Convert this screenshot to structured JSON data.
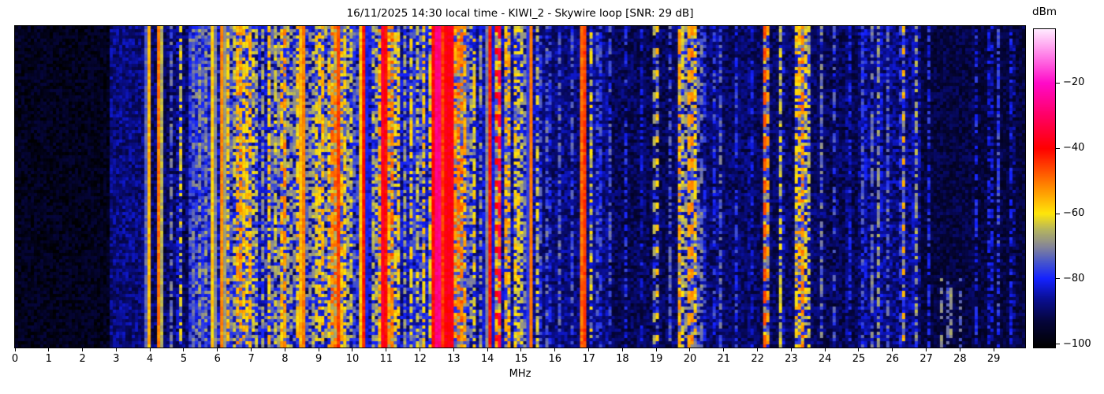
{
  "header": {
    "title": "16/11/2025 14:30 local time - KIWI_2 - Skywire loop [SNR: 29 dB]"
  },
  "axes": {
    "x_label": "MHz",
    "x_ticks": [
      "0",
      "1",
      "2",
      "3",
      "4",
      "5",
      "6",
      "7",
      "8",
      "9",
      "10",
      "11",
      "12",
      "13",
      "14",
      "15",
      "16",
      "17",
      "18",
      "19",
      "20",
      "21",
      "22",
      "23",
      "24",
      "25",
      "26",
      "27",
      "28",
      "29"
    ]
  },
  "colorbar": {
    "label": "dBm",
    "ticks": [
      {
        "label": "−20",
        "value": -20
      },
      {
        "label": "−40",
        "value": -40
      },
      {
        "label": "−60",
        "value": -60
      },
      {
        "label": "−80",
        "value": -80
      },
      {
        "label": "−100",
        "value": -100
      }
    ]
  },
  "chart_data": {
    "type": "heatmap",
    "subtype": "radio-spectrogram-waterfall",
    "title": "16/11/2025 14:30 local time - KIWI_2 - Skywire loop [SNR: 29 dB]",
    "xlabel": "MHz",
    "colorbar_label": "dBm",
    "x_range": [
      0,
      29.93
    ],
    "value_range": [
      -101,
      -3.5
    ],
    "value_ticks": [
      -20,
      -40,
      -60,
      -80,
      -100
    ],
    "grid": {
      "cols": 320,
      "rows": 102
    },
    "seed": 7.31,
    "color_stops": [
      [
        -101,
        "#000000"
      ],
      [
        -93,
        "#05053c"
      ],
      [
        -86,
        "#0a0f96"
      ],
      [
        -80,
        "#1422ff"
      ],
      [
        -75,
        "#4655cd"
      ],
      [
        -70,
        "#878796"
      ],
      [
        -65,
        "#b4b45f"
      ],
      [
        -60,
        "#ffe60a"
      ],
      [
        -52,
        "#ff8c00"
      ],
      [
        -40,
        "#ff0000"
      ],
      [
        -30,
        "#ff0064"
      ],
      [
        -20,
        "#ff0ac8"
      ],
      [
        -12,
        "#ff78e6"
      ],
      [
        -3.5,
        "#ffeaff"
      ]
    ],
    "background_segments": [
      [
        0,
        2.8,
        -97,
        4,
        0
      ],
      [
        2.8,
        3.8,
        -88,
        5,
        0
      ],
      [
        3.8,
        5.1,
        -90,
        6,
        0
      ],
      [
        5.1,
        6.0,
        -81,
        7,
        1
      ],
      [
        6.0,
        7.5,
        -85,
        7,
        1
      ],
      [
        7.5,
        9.8,
        -86,
        7,
        0
      ],
      [
        9.8,
        11.5,
        -85,
        7,
        0
      ],
      [
        11.5,
        13.5,
        -83,
        7,
        0
      ],
      [
        13.5,
        15.6,
        -86,
        6,
        0
      ],
      [
        15.6,
        17.6,
        -88,
        5,
        0
      ],
      [
        17.6,
        19.5,
        -91,
        5,
        0
      ],
      [
        19.5,
        21.0,
        -89,
        5,
        0
      ],
      [
        21.0,
        24.0,
        -90,
        5,
        0
      ],
      [
        24.0,
        25.0,
        -91,
        5,
        0
      ],
      [
        25.0,
        26.8,
        -88,
        6,
        0
      ],
      [
        26.8,
        29.93,
        -93,
        4,
        0
      ]
    ],
    "bands": [
      [
        3.96,
        0.025,
        -56,
        "s"
      ],
      [
        4.28,
        0.02,
        -50,
        "s"
      ],
      [
        4.62,
        0.03,
        -73,
        "d"
      ],
      [
        4.9,
        0.025,
        -62,
        "d"
      ],
      [
        5.3,
        0.04,
        -72,
        "d"
      ],
      [
        5.5,
        0.03,
        -68,
        "d"
      ],
      [
        5.65,
        0.02,
        -70,
        "d"
      ],
      [
        5.87,
        0.025,
        -58,
        "s"
      ],
      [
        6.15,
        0.02,
        -52,
        "s"
      ],
      [
        6.32,
        0.03,
        -58,
        "d"
      ],
      [
        6.47,
        0.03,
        -65,
        "d"
      ],
      [
        6.6,
        0.04,
        -55,
        "d"
      ],
      [
        6.72,
        0.03,
        -52,
        "d"
      ],
      [
        6.85,
        0.03,
        -58,
        "d"
      ],
      [
        6.98,
        0.04,
        -55,
        "d"
      ],
      [
        7.1,
        0.03,
        -62,
        "d"
      ],
      [
        7.35,
        0.03,
        -68,
        "d"
      ],
      [
        7.55,
        0.025,
        -58,
        "d"
      ],
      [
        7.72,
        0.02,
        -64,
        "d"
      ],
      [
        7.88,
        0.025,
        -56,
        "d"
      ],
      [
        8.02,
        0.025,
        -53,
        "d"
      ],
      [
        8.18,
        0.02,
        -68,
        "d"
      ],
      [
        8.35,
        0.03,
        -58,
        "d"
      ],
      [
        8.52,
        0.025,
        -50,
        "s"
      ],
      [
        8.7,
        0.02,
        -66,
        "d"
      ],
      [
        8.9,
        0.03,
        -60,
        "d"
      ],
      [
        9.08,
        0.03,
        -55,
        "d"
      ],
      [
        9.28,
        0.03,
        -58,
        "d"
      ],
      [
        9.45,
        0.04,
        -50,
        "d"
      ],
      [
        9.58,
        0.03,
        -45,
        "s"
      ],
      [
        9.72,
        0.03,
        -55,
        "d"
      ],
      [
        9.92,
        0.025,
        -62,
        "d"
      ],
      [
        10.1,
        0.02,
        -70,
        "d"
      ],
      [
        10.32,
        0.03,
        -42,
        "s"
      ],
      [
        10.6,
        0.025,
        -65,
        "d"
      ],
      [
        10.78,
        0.03,
        -55,
        "d"
      ],
      [
        10.93,
        0.03,
        -36,
        "s"
      ],
      [
        11.14,
        0.03,
        -50,
        "d"
      ],
      [
        11.32,
        0.03,
        -58,
        "d"
      ],
      [
        11.55,
        0.03,
        -68,
        "d"
      ],
      [
        11.75,
        0.03,
        -60,
        "d"
      ],
      [
        11.95,
        0.03,
        -63,
        "d"
      ],
      [
        12.1,
        0.03,
        -58,
        "d"
      ],
      [
        12.3,
        0.03,
        -60,
        "d"
      ],
      [
        12.53,
        0.09,
        -27,
        "s"
      ],
      [
        12.85,
        0.1,
        -38,
        "s"
      ],
      [
        13.15,
        0.08,
        -50,
        "d"
      ],
      [
        13.32,
        0.05,
        -55,
        "d"
      ],
      [
        13.58,
        0.03,
        -60,
        "d"
      ],
      [
        13.82,
        0.02,
        -68,
        "d"
      ],
      [
        14.07,
        0.02,
        -42,
        "s"
      ],
      [
        14.32,
        0.02,
        -32,
        "h"
      ],
      [
        14.58,
        0.05,
        -55,
        "d"
      ],
      [
        14.87,
        0.03,
        -58,
        "d"
      ],
      [
        15.05,
        0.02,
        -62,
        "d"
      ],
      [
        15.28,
        0.015,
        -50,
        "t"
      ],
      [
        15.5,
        0.03,
        -64,
        "d"
      ],
      [
        15.8,
        0.02,
        -72,
        "d"
      ],
      [
        16.15,
        0.02,
        -74,
        "d"
      ],
      [
        16.5,
        0.02,
        -76,
        "d"
      ],
      [
        16.85,
        0.035,
        -45,
        "s"
      ],
      [
        17.08,
        0.02,
        -62,
        "d"
      ],
      [
        17.3,
        0.02,
        -72,
        "d"
      ],
      [
        17.6,
        0.02,
        -75,
        "d"
      ],
      [
        18.1,
        0.02,
        -80,
        "d"
      ],
      [
        18.6,
        0.02,
        -82,
        "d"
      ],
      [
        19.0,
        0.02,
        -56,
        "h"
      ],
      [
        19.4,
        0.02,
        -75,
        "d"
      ],
      [
        19.72,
        0.025,
        -55,
        "d"
      ],
      [
        19.88,
        0.02,
        -68,
        "d"
      ],
      [
        20.02,
        0.02,
        -48,
        "h"
      ],
      [
        20.18,
        0.02,
        -58,
        "d"
      ],
      [
        20.38,
        0.02,
        -70,
        "d"
      ],
      [
        20.75,
        0.02,
        -76,
        "d"
      ],
      [
        20.92,
        0.02,
        -74,
        "d"
      ],
      [
        21.4,
        0.02,
        -78,
        "d"
      ],
      [
        21.8,
        0.02,
        -80,
        "d"
      ],
      [
        22.25,
        0.02,
        -45,
        "h"
      ],
      [
        22.7,
        0.02,
        -64,
        "d"
      ],
      [
        23.16,
        0.02,
        -58,
        "d"
      ],
      [
        23.3,
        0.035,
        -52,
        "d"
      ],
      [
        23.47,
        0.02,
        -58,
        "d"
      ],
      [
        23.88,
        0.02,
        -72,
        "d"
      ],
      [
        24.3,
        0.02,
        -76,
        "d"
      ],
      [
        24.7,
        0.02,
        -80,
        "d"
      ],
      [
        25.15,
        0.02,
        -74,
        "d"
      ],
      [
        25.4,
        0.025,
        -72,
        "d"
      ],
      [
        25.6,
        0.025,
        -68,
        "d"
      ],
      [
        25.85,
        0.02,
        -74,
        "d"
      ],
      [
        26.32,
        0.025,
        -55,
        "h"
      ],
      [
        26.68,
        0.02,
        -68,
        "d"
      ],
      [
        27.1,
        0.02,
        -80,
        "d"
      ],
      [
        27.45,
        0.03,
        -70,
        "b"
      ],
      [
        27.7,
        0.03,
        -68,
        "b"
      ],
      [
        28.0,
        0.02,
        -72,
        "b"
      ],
      [
        28.45,
        0.02,
        -80,
        "d"
      ],
      [
        28.9,
        0.02,
        -78,
        "d"
      ],
      [
        29.15,
        0.02,
        -77,
        "d"
      ],
      [
        29.55,
        0.02,
        -80,
        "d"
      ]
    ]
  }
}
